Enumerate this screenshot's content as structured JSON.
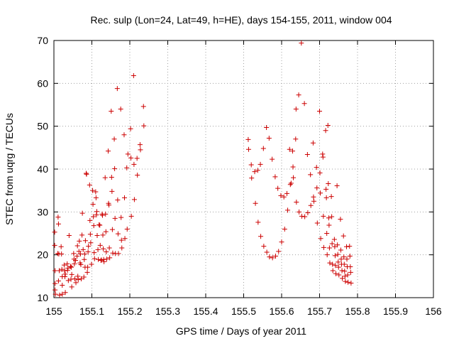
{
  "chart_data": {
    "type": "scatter",
    "title": "Rec. sulp (Lon=24, Lat=49, h=HE), days 154-155, 2011, window 004",
    "xlabel": "GPS time / Days of year 2011",
    "ylabel": "STEC from uqrg / TECUs",
    "xlim": [
      155,
      156
    ],
    "ylim": [
      10,
      70
    ],
    "xticks": [
      155,
      155.1,
      155.2,
      155.3,
      155.4,
      155.5,
      155.6,
      155.7,
      155.8,
      155.9,
      156
    ],
    "xtick_labels": [
      "155",
      "155.1",
      "155.2",
      "155.3",
      "155.4",
      "155.5",
      "155.6",
      "155.7",
      "155.8",
      "155.9",
      "156"
    ],
    "yticks": [
      10,
      20,
      30,
      40,
      50,
      60,
      70
    ],
    "ytick_labels": [
      "10",
      "20",
      "30",
      "40",
      "50",
      "60",
      "70"
    ],
    "grid": true,
    "marker": "+",
    "color": "#cc0000",
    "series": [
      {
        "points": [
          [
            155.002,
            25.3
          ],
          [
            155.002,
            22.2
          ],
          [
            155.003,
            16.3
          ],
          [
            155.003,
            13.3
          ],
          [
            155.003,
            11.8
          ],
          [
            155.004,
            10.8
          ],
          [
            155.01,
            20.3
          ],
          [
            155.011,
            28.8
          ],
          [
            155.012,
            27.2
          ],
          [
            155.012,
            13.9
          ],
          [
            155.013,
            20.2
          ],
          [
            155.014,
            16.3
          ],
          [
            155.015,
            10.6
          ],
          [
            155.019,
            21.9
          ],
          [
            155.02,
            20.2
          ],
          [
            155.021,
            16.6
          ],
          [
            155.022,
            14.9
          ],
          [
            155.022,
            12.9
          ],
          [
            155.022,
            10.8
          ],
          [
            155.027,
            17.6
          ],
          [
            155.028,
            16.3
          ],
          [
            155.029,
            14.9
          ],
          [
            155.03,
            11.2
          ],
          [
            155.03,
            15.5
          ],
          [
            155.035,
            17.9
          ],
          [
            155.036,
            16.4
          ],
          [
            155.037,
            16.9
          ],
          [
            155.038,
            14.0
          ],
          [
            155.04,
            24.5
          ],
          [
            155.044,
            17.3
          ],
          [
            155.045,
            14.3
          ],
          [
            155.046,
            17.1
          ],
          [
            155.047,
            12.5
          ],
          [
            155.047,
            15.4
          ],
          [
            155.052,
            20.3
          ],
          [
            155.053,
            19.0
          ],
          [
            155.054,
            17.9
          ],
          [
            155.055,
            14.4
          ],
          [
            155.057,
            18.7
          ],
          [
            155.058,
            13.5
          ],
          [
            155.061,
            19.7
          ],
          [
            155.062,
            22.1
          ],
          [
            155.063,
            15.0
          ],
          [
            155.064,
            14.2
          ],
          [
            155.066,
            20.8
          ],
          [
            155.067,
            23.2
          ],
          [
            155.069,
            18.1
          ],
          [
            155.07,
            20.2
          ],
          [
            155.071,
            17.7
          ],
          [
            155.072,
            14.4
          ],
          [
            155.074,
            24.6
          ],
          [
            155.075,
            29.7
          ],
          [
            155.077,
            21.2
          ],
          [
            155.079,
            14.8
          ],
          [
            155.08,
            18.9
          ],
          [
            155.081,
            20.2
          ],
          [
            155.082,
            17.1
          ],
          [
            155.083,
            23.3
          ],
          [
            155.085,
            39.0
          ],
          [
            155.086,
            38.8
          ],
          [
            155.088,
            15.9
          ],
          [
            155.089,
            17.1
          ],
          [
            155.09,
            20.7
          ],
          [
            155.091,
            22.0
          ],
          [
            155.094,
            36.3
          ],
          [
            155.095,
            28.0
          ],
          [
            155.096,
            24.8
          ],
          [
            155.097,
            22.8
          ],
          [
            155.099,
            17.8
          ],
          [
            155.102,
            35.0
          ],
          [
            155.103,
            31.8
          ],
          [
            155.104,
            28.9
          ],
          [
            155.105,
            26.8
          ],
          [
            155.106,
            20.5
          ],
          [
            155.107,
            19.1
          ],
          [
            155.11,
            34.7
          ],
          [
            155.111,
            33.3
          ],
          [
            155.112,
            29.3
          ],
          [
            155.113,
            30.1
          ],
          [
            155.114,
            24.5
          ],
          [
            155.116,
            21.2
          ],
          [
            155.117,
            18.9
          ],
          [
            155.119,
            27.0
          ],
          [
            155.121,
            26.9
          ],
          [
            155.122,
            22.2
          ],
          [
            155.124,
            18.7
          ],
          [
            155.125,
            18.8
          ],
          [
            155.127,
            29.5
          ],
          [
            155.128,
            29.2
          ],
          [
            155.129,
            24.6
          ],
          [
            155.13,
            21.4
          ],
          [
            155.131,
            18.9
          ],
          [
            155.132,
            18.4
          ],
          [
            155.135,
            38.0
          ],
          [
            155.136,
            29.5
          ],
          [
            155.137,
            25.4
          ],
          [
            155.138,
            20.7
          ],
          [
            155.139,
            19.0
          ],
          [
            155.143,
            44.2
          ],
          [
            155.144,
            32.0
          ],
          [
            155.145,
            31.6
          ],
          [
            155.146,
            21.6
          ],
          [
            155.147,
            19.3
          ],
          [
            155.151,
            53.5
          ],
          [
            155.152,
            38.1
          ],
          [
            155.153,
            34.8
          ],
          [
            155.154,
            25.9
          ],
          [
            155.155,
            20.4
          ],
          [
            155.159,
            47.0
          ],
          [
            155.16,
            40.1
          ],
          [
            155.161,
            28.5
          ],
          [
            155.162,
            20.3
          ],
          [
            155.167,
            58.8
          ],
          [
            155.168,
            32.8
          ],
          [
            155.169,
            24.9
          ],
          [
            155.17,
            20.3
          ],
          [
            155.176,
            54.0
          ],
          [
            155.177,
            28.7
          ],
          [
            155.178,
            23.4
          ],
          [
            155.179,
            21.6
          ],
          [
            155.185,
            48.0
          ],
          [
            155.186,
            33.3
          ],
          [
            155.187,
            23.8
          ],
          [
            155.192,
            40.3
          ],
          [
            155.193,
            26.0
          ],
          [
            155.195,
            43.5
          ],
          [
            155.202,
            49.4
          ],
          [
            155.203,
            42.6
          ],
          [
            155.204,
            29.0
          ],
          [
            155.21,
            61.8
          ],
          [
            155.211,
            41.1
          ],
          [
            155.212,
            32.9
          ],
          [
            155.219,
            42.5
          ],
          [
            155.22,
            38.6
          ],
          [
            155.227,
            45.7
          ],
          [
            155.228,
            44.5
          ],
          [
            155.236,
            54.6
          ],
          [
            155.237,
            50.1
          ]
        ]
      },
      {
        "points": [
          [
            155.512,
            46.9
          ],
          [
            155.513,
            44.6
          ],
          [
            155.52,
            41.0
          ],
          [
            155.521,
            37.9
          ],
          [
            155.529,
            39.4
          ],
          [
            155.531,
            32.0
          ],
          [
            155.537,
            39.7
          ],
          [
            155.538,
            27.6
          ],
          [
            155.544,
            41.1
          ],
          [
            155.545,
            24.3
          ],
          [
            155.552,
            44.8
          ],
          [
            155.553,
            22.0
          ],
          [
            155.56,
            49.7
          ],
          [
            155.561,
            20.6
          ],
          [
            155.567,
            47.2
          ],
          [
            155.568,
            19.5
          ],
          [
            155.575,
            42.3
          ],
          [
            155.576,
            19.3
          ],
          [
            155.583,
            38.2
          ],
          [
            155.584,
            19.7
          ],
          [
            155.59,
            35.5
          ],
          [
            155.592,
            20.8
          ],
          [
            155.598,
            33.8
          ],
          [
            155.6,
            23.0
          ],
          [
            155.606,
            33.5
          ],
          [
            155.608,
            26.0
          ],
          [
            155.614,
            34.3
          ],
          [
            155.616,
            30.4
          ],
          [
            155.621,
            44.6
          ],
          [
            155.623,
            36.4
          ],
          [
            155.625,
            36.7
          ],
          [
            155.629,
            44.2
          ],
          [
            155.63,
            40.5
          ],
          [
            155.631,
            38.0
          ],
          [
            155.637,
            47.0
          ],
          [
            155.638,
            54.0
          ],
          [
            155.639,
            32.3
          ],
          [
            155.645,
            57.3
          ],
          [
            155.646,
            30.0
          ],
          [
            155.652,
            69.4
          ],
          [
            155.653,
            29.0
          ],
          [
            155.66,
            55.3
          ],
          [
            155.661,
            28.9
          ],
          [
            155.668,
            43.4
          ],
          [
            155.669,
            29.8
          ],
          [
            155.676,
            38.7
          ],
          [
            155.677,
            31.5
          ],
          [
            155.683,
            46.1
          ],
          [
            155.684,
            33.5
          ],
          [
            155.685,
            32.5
          ],
          [
            155.692,
            40.4
          ],
          [
            155.693,
            35.6
          ],
          [
            155.694,
            27.4
          ],
          [
            155.7,
            53.5
          ],
          [
            155.701,
            39.1
          ],
          [
            155.702,
            34.4
          ],
          [
            155.703,
            23.8
          ],
          [
            155.708,
            43.5
          ],
          [
            155.709,
            42.8
          ],
          [
            155.71,
            29.0
          ],
          [
            155.711,
            21.7
          ],
          [
            155.716,
            49.0
          ],
          [
            155.717,
            35.3
          ],
          [
            155.718,
            33.3
          ],
          [
            155.719,
            25.0
          ],
          [
            155.72,
            20.0
          ],
          [
            155.722,
            50.2
          ],
          [
            155.723,
            36.6
          ],
          [
            155.724,
            28.6
          ],
          [
            155.725,
            26.9
          ],
          [
            155.726,
            21.6
          ],
          [
            155.727,
            18.1
          ],
          [
            155.731,
            33.6
          ],
          [
            155.732,
            28.9
          ],
          [
            155.733,
            22.6
          ],
          [
            155.734,
            17.8
          ],
          [
            155.735,
            16.3
          ],
          [
            155.739,
            23.6
          ],
          [
            155.74,
            21.9
          ],
          [
            155.741,
            19.8
          ],
          [
            155.742,
            17.5
          ],
          [
            155.743,
            15.6
          ],
          [
            155.746,
            36.1
          ],
          [
            155.747,
            22.3
          ],
          [
            155.748,
            20.1
          ],
          [
            155.749,
            18.3
          ],
          [
            155.75,
            17.1
          ],
          [
            155.751,
            15.3
          ],
          [
            155.755,
            28.3
          ],
          [
            155.756,
            21.1
          ],
          [
            155.757,
            19.0
          ],
          [
            155.758,
            17.8
          ],
          [
            155.759,
            16.3
          ],
          [
            155.76,
            14.5
          ],
          [
            155.763,
            24.4
          ],
          [
            155.764,
            19.5
          ],
          [
            155.765,
            17.8
          ],
          [
            155.766,
            16.2
          ],
          [
            155.767,
            15.0
          ],
          [
            155.768,
            13.8
          ],
          [
            155.771,
            21.9
          ],
          [
            155.772,
            19.0
          ],
          [
            155.773,
            17.2
          ],
          [
            155.774,
            15.3
          ],
          [
            155.775,
            13.6
          ],
          [
            155.779,
            22.0
          ],
          [
            155.78,
            19.7
          ],
          [
            155.781,
            17.2
          ],
          [
            155.782,
            15.9
          ],
          [
            155.783,
            13.4
          ]
        ]
      }
    ]
  }
}
